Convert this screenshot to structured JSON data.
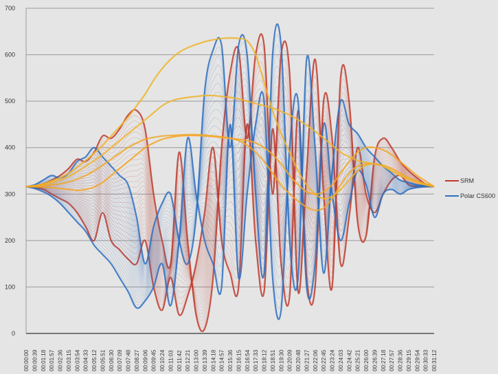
{
  "chart_data": {
    "type": "line",
    "title": "",
    "xlabel": "",
    "ylabel": "",
    "ylim": [
      0,
      700
    ],
    "yticks": [
      0,
      100,
      200,
      300,
      400,
      500,
      600,
      700
    ],
    "grid": true,
    "legend_position": "right",
    "x": [
      "00:00:00",
      "00:00:39",
      "00:01:18",
      "00:01:57",
      "00:02:36",
      "00:03:15",
      "00:03:54",
      "00:04:33",
      "00:05:12",
      "00:05:51",
      "00:06:30",
      "00:07:09",
      "00:07:48",
      "00:08:27",
      "00:09:06",
      "00:09:45",
      "00:10:24",
      "00:11:03",
      "00:11:42",
      "00:12:21",
      "00:13:00",
      "00:13:39",
      "00:14:18",
      "00:14:57",
      "00:15:36",
      "00:16:15",
      "00:16:54",
      "00:17:33",
      "00:18:12",
      "00:18:51",
      "00:19:30",
      "00:20:09",
      "00:20:48",
      "00:21:27",
      "00:22:06",
      "00:22:45",
      "00:23:24",
      "00:24:03",
      "00:24:42",
      "00:25:21",
      "00:26:00",
      "00:26:39",
      "00:27:18",
      "00:27:57",
      "00:28:36",
      "00:29:15",
      "00:29:54",
      "00:30:33",
      "00:31:12"
    ],
    "series": [
      {
        "name": "SRM",
        "color": "#c0392b",
        "style": "ribbon",
        "edge_a": [
          316,
          318,
          322,
          330,
          340,
          355,
          375,
          370,
          390,
          425,
          420,
          440,
          470,
          480,
          440,
          300,
          200,
          150,
          390,
          200,
          40,
          10,
          120,
          400,
          560,
          610,
          420,
          600,
          620,
          300,
          600,
          560,
          90,
          350,
          590,
          300,
          100,
          550,
          500,
          240,
          210,
          380,
          420,
          400,
          370,
          350,
          335,
          322,
          316
        ],
        "edge_b": [
          316,
          314,
          310,
          300,
          290,
          280,
          260,
          230,
          200,
          260,
          200,
          180,
          160,
          150,
          200,
          100,
          50,
          120,
          40,
          80,
          150,
          260,
          400,
          200,
          130,
          100,
          450,
          200,
          90,
          440,
          150,
          80,
          480,
          120,
          100,
          500,
          420,
          150,
          250,
          400,
          300,
          260,
          300,
          330,
          340,
          320,
          316,
          316,
          316
        ]
      },
      {
        "name": "Polar CS600",
        "color": "#2e6fc0",
        "style": "ribbon",
        "edge_a": [
          316,
          320,
          330,
          340,
          335,
          345,
          370,
          380,
          400,
          380,
          360,
          340,
          320,
          250,
          150,
          230,
          280,
          300,
          200,
          150,
          250,
          520,
          610,
          620,
          400,
          620,
          600,
          300,
          130,
          600,
          620,
          200,
          120,
          590,
          400,
          130,
          350,
          500,
          450,
          430,
          400,
          380,
          360,
          345,
          330,
          325,
          320,
          318,
          316
        ],
        "edge_b": [
          316,
          312,
          305,
          295,
          280,
          260,
          240,
          220,
          190,
          170,
          150,
          120,
          90,
          55,
          70,
          100,
          150,
          60,
          200,
          420,
          300,
          200,
          150,
          100,
          450,
          120,
          300,
          450,
          500,
          120,
          50,
          400,
          500,
          100,
          150,
          450,
          300,
          200,
          280,
          350,
          320,
          250,
          300,
          310,
          300,
          310,
          314,
          316,
          316
        ]
      },
      {
        "color": "#f0b429",
        "style": "line",
        "values": [
          316,
          318,
          322,
          328,
          335,
          345,
          358,
          372,
          388,
          405,
          425,
          445,
          465,
          490,
          515,
          545,
          570,
          590,
          605,
          615,
          622,
          628,
          632,
          635,
          636,
          635,
          630,
          600,
          540,
          480,
          430,
          390,
          350,
          320,
          300,
          290,
          295,
          310,
          330,
          350,
          362,
          365,
          360,
          350,
          340,
          332,
          325,
          320,
          316
        ]
      },
      {
        "color": "#f0b429",
        "style": "line",
        "values": [
          316,
          318,
          320,
          325,
          330,
          338,
          348,
          360,
          372,
          385,
          400,
          415,
          430,
          445,
          460,
          475,
          490,
          500,
          505,
          508,
          510,
          512,
          512,
          510,
          508,
          505,
          500,
          495,
          490,
          485,
          478,
          470,
          460,
          448,
          435,
          420,
          405,
          390,
          380,
          372,
          368,
          365,
          360,
          350,
          340,
          332,
          325,
          320,
          316
        ]
      },
      {
        "color": "#f0a829",
        "style": "line",
        "values": [
          316,
          316,
          318,
          320,
          322,
          326,
          332,
          340,
          350,
          362,
          375,
          388,
          400,
          410,
          418,
          422,
          425,
          426,
          427,
          428,
          428,
          427,
          425,
          423,
          420,
          415,
          405,
          390,
          370,
          345,
          320,
          300,
          285,
          272,
          265,
          270,
          290,
          320,
          345,
          360,
          365,
          365,
          362,
          355,
          345,
          335,
          328,
          322,
          316
        ]
      },
      {
        "color": "#f5a623",
        "style": "line",
        "values": [
          316,
          316,
          315,
          314,
          312,
          310,
          308,
          310,
          315,
          325,
          340,
          355,
          370,
          385,
          400,
          410,
          418,
          422,
          425,
          426,
          426,
          425,
          424,
          422,
          420,
          418,
          415,
          410,
          400,
          385,
          365,
          340,
          320,
          305,
          300,
          305,
          320,
          345,
          370,
          390,
          400,
          400,
          395,
          385,
          370,
          355,
          340,
          328,
          316
        ]
      }
    ],
    "legend": [
      {
        "label": "SRM",
        "color": "#c0392b"
      },
      {
        "label": "Polar CS600",
        "color": "#2e6fc0"
      }
    ]
  }
}
